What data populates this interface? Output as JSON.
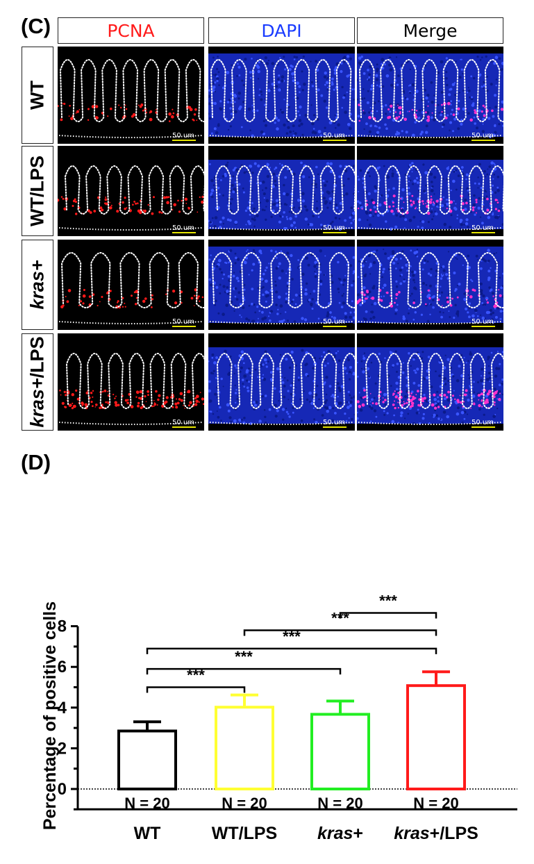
{
  "panel_c": {
    "letter": "(C)",
    "columns": [
      {
        "label": "PCNA",
        "color": "#ff1a1a"
      },
      {
        "label": "DAPI",
        "color": "#1a3cff"
      },
      {
        "label": "Merge",
        "color": "#000000"
      }
    ],
    "rows": [
      {
        "prefix": "",
        "emph": "",
        "text": "WT"
      },
      {
        "prefix": "",
        "emph": "",
        "text": "WT/LPS"
      },
      {
        "prefix": "",
        "emph": "kras+",
        "text": ""
      },
      {
        "prefix": "",
        "emph": "kras+",
        "text": "/LPS"
      }
    ],
    "scale_label": "50 um",
    "colors": {
      "pcna": "#ff1a1a",
      "dapi": "#1a2fd6",
      "outline": "#ffffff",
      "scale_bar": "#e6e600"
    }
  },
  "panel_d": {
    "letter": "(D)"
  },
  "chart_data": {
    "type": "bar",
    "ylabel": "Percentage of positive cells",
    "ylim": [
      -1,
      8
    ],
    "yticks": [
      0,
      2,
      4,
      6,
      8
    ],
    "categories": [
      {
        "main": "WT",
        "suffix": "",
        "italic": false
      },
      {
        "main": "WT/LPS",
        "suffix": "",
        "italic": false
      },
      {
        "main": "kras",
        "suffix": "+",
        "italic": true
      },
      {
        "main": "kras",
        "suffix": "+/LPS",
        "italic": true
      }
    ],
    "values": [
      2.85,
      4.02,
      3.67,
      5.08
    ],
    "errors": [
      0.45,
      0.6,
      0.65,
      0.68
    ],
    "bar_colors": [
      "#000000",
      "#ffff33",
      "#22ee22",
      "#ff1a1a"
    ],
    "n_labels": [
      "N = 20",
      "N = 20",
      "N = 20",
      "N = 20"
    ],
    "significance": [
      {
        "from": 0,
        "to": 1,
        "y": 5.0,
        "label": "***"
      },
      {
        "from": 0,
        "to": 2,
        "y": 5.9,
        "label": "***"
      },
      {
        "from": 0,
        "to": 3,
        "y": 6.9,
        "label": "***"
      },
      {
        "from": 1,
        "to": 3,
        "y": 7.8,
        "label": "***"
      },
      {
        "from": 2,
        "to": 3,
        "y": 8.65,
        "label": "***"
      }
    ],
    "grid": false
  }
}
